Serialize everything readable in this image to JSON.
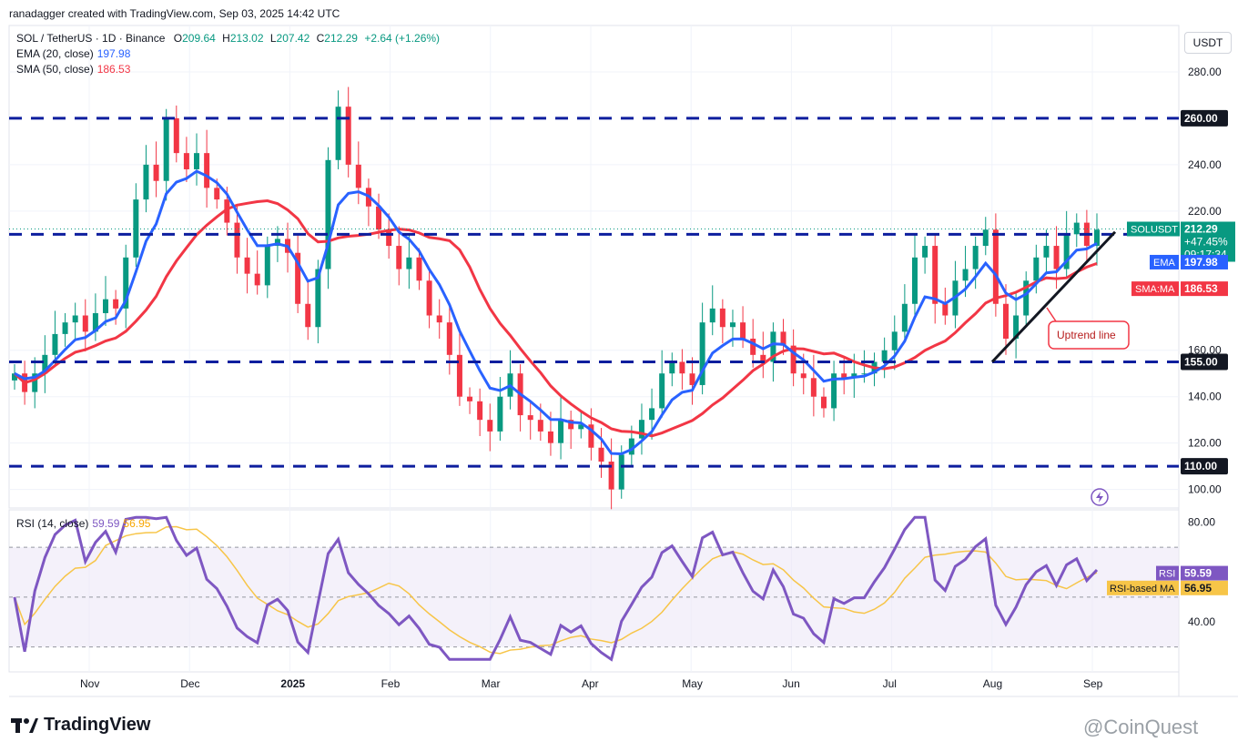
{
  "top_bar": {
    "author_line": "ranadagger created with TradingView.com, Sep 03, 2025 14:42 UTC"
  },
  "legend": {
    "symbol": "SOL / TetherUS · 1D · Binance",
    "o_label": "O",
    "o_value": "209.64",
    "h_label": "H",
    "h_value": "213.02",
    "l_label": "L",
    "l_value": "207.42",
    "c_label": "C",
    "c_value": "212.29",
    "change": "+2.64 (+1.26%)",
    "ema_label": "EMA (20, close)",
    "ema_value": "197.98",
    "sma_label": "SMA (50, close)",
    "sma_value": "186.53",
    "rsi_label": "RSI (14, close)",
    "rsi_value": "59.59",
    "rsi_ma_value": "56.95"
  },
  "currency_button": "USDT",
  "price_axis": {
    "ticks": [
      "280.00",
      "240.00",
      "220.00",
      "160.00",
      "140.00",
      "120.00",
      "100.00"
    ]
  },
  "rsi_axis": {
    "ticks": [
      "80.00",
      "40.00"
    ]
  },
  "level_tags": {
    "r260": "260.00",
    "r210": "210.00",
    "r155": "155.00",
    "r110": "110.00",
    "symbol_tag": "SOLUSDT",
    "price": "212.29",
    "pct": "+47.45%",
    "countdown": "09:17:34",
    "ema_tag": "EMA",
    "ema_val": "197.98",
    "sma_tag": "SMA:MA",
    "sma_val": "186.53",
    "rsi_tag": "RSI",
    "rsi_val": "59.59",
    "rsima_tag": "RSI-based MA",
    "rsima_val": "56.95"
  },
  "annotation": {
    "uptrend": "Uptrend line"
  },
  "time_axis": [
    "Nov",
    "Dec",
    "2025",
    "Feb",
    "Mar",
    "Apr",
    "May",
    "Jun",
    "Jul",
    "Aug",
    "Sep"
  ],
  "footer": {
    "brand": "TradingView",
    "watermark": "@CoinQuest"
  },
  "colors": {
    "bull": "#089981",
    "bear": "#f23645",
    "ema": "#2962ff",
    "sma": "#f23645",
    "rsi": "#7e57c2",
    "rsima": "#f7c548",
    "levels": "#0d1e9e"
  },
  "chart_data": {
    "type": "candlestick",
    "symbol": "SOL / TetherUS",
    "timeframe": "1D",
    "x_months": [
      "Nov",
      "Dec",
      "2025",
      "Feb",
      "Mar",
      "Apr",
      "May",
      "Jun",
      "Jul",
      "Aug",
      "Sep"
    ],
    "y_range": [
      92,
      300
    ],
    "horizontal_levels": [
      260,
      210,
      155,
      110
    ],
    "close_series_approx": [
      150,
      142,
      150,
      158,
      167,
      172,
      175,
      168,
      176,
      182,
      178,
      200,
      225,
      240,
      233,
      260,
      245,
      238,
      245,
      230,
      225,
      215,
      200,
      193,
      188,
      205,
      208,
      202,
      180,
      170,
      195,
      242,
      265,
      240,
      230,
      222,
      212,
      205,
      195,
      200,
      190,
      175,
      172,
      158,
      140,
      138,
      130,
      125,
      140,
      150,
      132,
      130,
      125,
      120,
      130,
      126,
      128,
      118,
      112,
      100,
      115,
      122,
      130,
      135,
      150,
      155,
      150,
      145,
      172,
      178,
      170,
      172,
      165,
      158,
      155,
      168,
      162,
      150,
      148,
      140,
      135,
      150,
      148,
      150,
      150,
      155,
      160,
      168,
      180,
      200,
      205,
      180,
      175,
      190,
      195,
      205,
      212,
      180,
      165,
      175,
      190,
      200,
      205,
      195,
      210,
      215,
      205,
      212
    ],
    "ema_20_last": 197.98,
    "sma_50_last": 186.53,
    "rsi_14_last": 59.59,
    "rsi_ma_last": 56.95,
    "rsi_range": [
      20,
      85
    ]
  }
}
